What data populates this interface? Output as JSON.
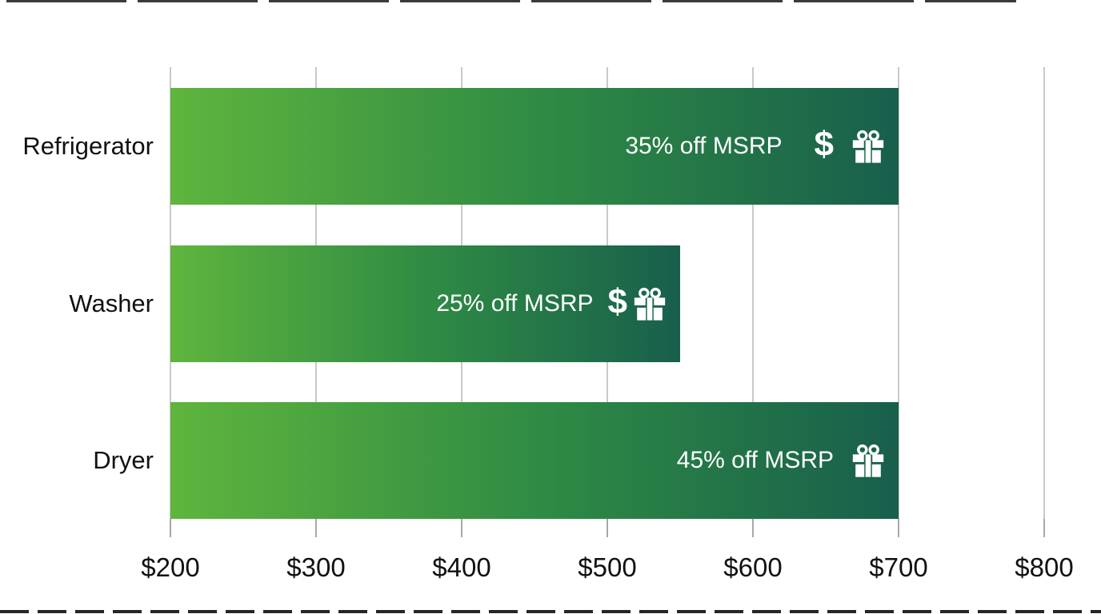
{
  "chart_data": {
    "type": "bar",
    "orientation": "horizontal",
    "title": "",
    "categories": [
      "Refrigerator",
      "Washer",
      "Dryer"
    ],
    "values": [
      700,
      550,
      700
    ],
    "bar_base_value": 200,
    "bar_labels": [
      "35% off MSRP",
      "25% off MSRP",
      "45% off MSRP"
    ],
    "bar_icons": [
      [
        "dollar-sign",
        "gift"
      ],
      [
        "dollar-sign",
        "gift"
      ],
      [
        "gift"
      ]
    ],
    "dollar_glyph": "$",
    "x_tick_labels": [
      "$200",
      "$300",
      "$400",
      "$500",
      "$600",
      "$700",
      "$800"
    ],
    "x_tick_values": [
      200,
      300,
      400,
      500,
      600,
      700,
      800
    ],
    "xlim": [
      200,
      800
    ],
    "xlabel": "",
    "ylabel": "",
    "grid": true,
    "legend": "none",
    "colors": {
      "bar_gradient_start": "#5fb53d",
      "bar_gradient_mid": "#2e8a44",
      "bar_gradient_end": "#185f4c",
      "bar_label_text": "#ffffff",
      "axis_text": "#111111",
      "gridline": "#c9c9c9",
      "tick_mark": "#a8a8a8",
      "background": "#ffffff"
    }
  }
}
